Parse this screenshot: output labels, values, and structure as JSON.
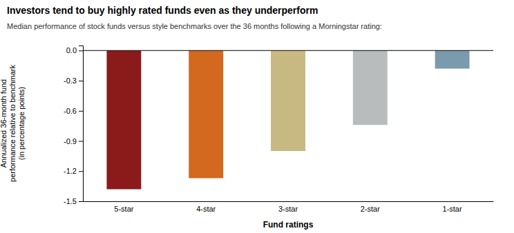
{
  "chart_data": {
    "type": "bar",
    "title": "Investors tend to buy highly rated funds even as they underperform",
    "subtitle": "Median performance of stock funds versus style benchmarks over the 36 months following a Morningstar rating:",
    "categories": [
      "5-star",
      "4-star",
      "3-star",
      "2-star",
      "1-star"
    ],
    "values": [
      -1.38,
      -1.27,
      -1.0,
      -0.74,
      -0.18
    ],
    "colors": [
      "#8B1A1A",
      "#D2691E",
      "#C8B882",
      "#B8BCBC",
      "#7A9BAD"
    ],
    "xlabel": "Fund ratings",
    "ylabel": "Annualized 36-month fund\nperformance relative to benchmark\n(in percentage points)",
    "ylim": [
      -1.5,
      0.05
    ],
    "yticks": [
      {
        "value": 0,
        "label": "0.0"
      },
      -0.3,
      -0.6,
      -0.9,
      -1.2,
      -1.5
    ],
    "grid": false
  }
}
